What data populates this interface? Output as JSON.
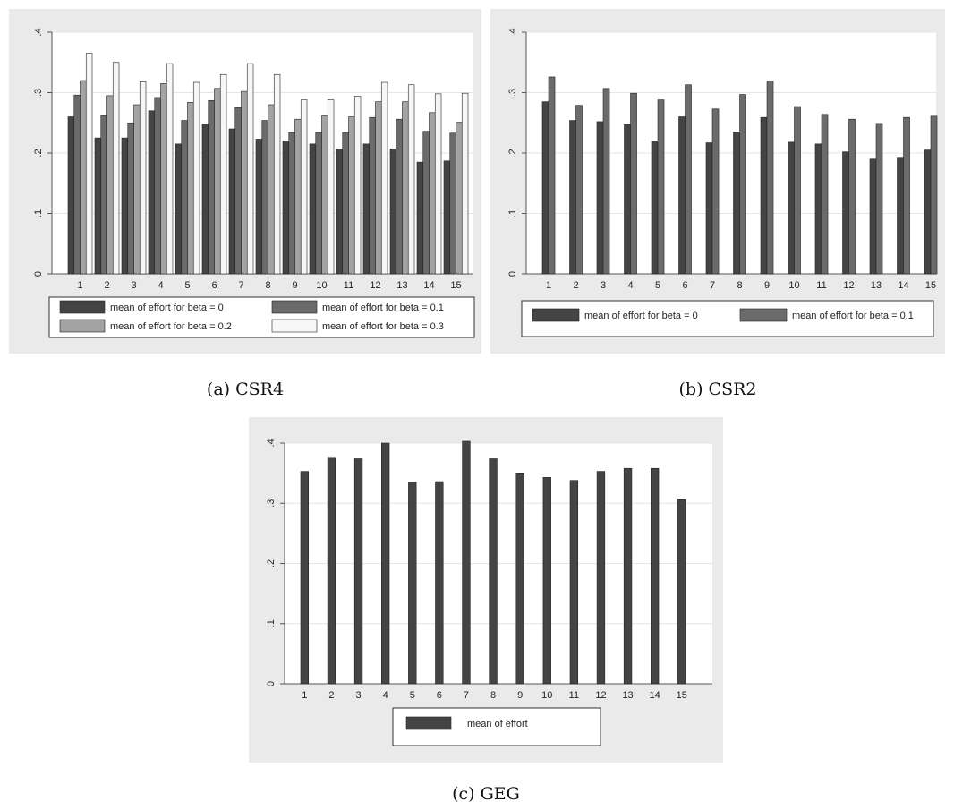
{
  "colors": {
    "panel_bg": "#eaeaea",
    "plot_bg": "#ffffff",
    "grid": "#e6e6e6",
    "axis": "#555555",
    "bar_stroke": "#222222",
    "series": [
      "#444444",
      "#6b6b6b",
      "#a3a3a3",
      "#f7f7f7"
    ]
  },
  "captions": {
    "a": "(a)  CSR4",
    "b": "(b)  CSR2",
    "c": "(c)  GEG"
  },
  "chart_data": [
    {
      "id": "a",
      "type": "bar",
      "ylim": [
        0,
        0.4
      ],
      "yticks": [
        0,
        0.1,
        0.2,
        0.3,
        0.4
      ],
      "ytick_labels": [
        "0",
        ".1",
        ".2",
        ".3",
        ".4"
      ],
      "grid": true,
      "legend": "bottom",
      "categories": [
        "1",
        "2",
        "3",
        "4",
        "5",
        "6",
        "7",
        "8",
        "9",
        "10",
        "11",
        "12",
        "13",
        "14",
        "15"
      ],
      "series": [
        {
          "name": "mean of effort for beta = 0",
          "values": [
            0.26,
            0.225,
            0.225,
            0.27,
            0.215,
            0.248,
            0.24,
            0.223,
            0.22,
            0.215,
            0.207,
            0.215,
            0.207,
            0.185,
            0.187
          ]
        },
        {
          "name": "mean of effort for beta = 0.1",
          "values": [
            0.296,
            0.262,
            0.25,
            0.292,
            0.254,
            0.287,
            0.275,
            0.254,
            0.234,
            0.234,
            0.234,
            0.259,
            0.256,
            0.236,
            0.233
          ]
        },
        {
          "name": "mean of effort for beta = 0.2",
          "values": [
            0.32,
            0.295,
            0.28,
            0.315,
            0.284,
            0.307,
            0.302,
            0.28,
            0.256,
            0.262,
            0.26,
            0.285,
            0.285,
            0.267,
            0.251
          ]
        },
        {
          "name": "mean of effort for beta = 0.3",
          "values": [
            0.365,
            0.35,
            0.318,
            0.348,
            0.317,
            0.33,
            0.348,
            0.33,
            0.288,
            0.288,
            0.294,
            0.317,
            0.313,
            0.298,
            0.299
          ]
        }
      ]
    },
    {
      "id": "b",
      "type": "bar",
      "ylim": [
        0,
        0.4
      ],
      "yticks": [
        0,
        0.1,
        0.2,
        0.3,
        0.4
      ],
      "ytick_labels": [
        "0",
        ".1",
        ".2",
        ".3",
        ".4"
      ],
      "grid": true,
      "legend": "bottom",
      "categories": [
        "1",
        "2",
        "3",
        "4",
        "5",
        "6",
        "7",
        "8",
        "9",
        "10",
        "11",
        "12",
        "13",
        "14",
        "15"
      ],
      "series": [
        {
          "name": "mean of effort for beta = 0",
          "values": [
            0.285,
            0.254,
            0.252,
            0.247,
            0.22,
            0.26,
            0.217,
            0.235,
            0.259,
            0.218,
            0.215,
            0.202,
            0.19,
            0.193,
            0.205
          ]
        },
        {
          "name": "mean of effort for beta = 0.1",
          "values": [
            0.326,
            0.279,
            0.307,
            0.299,
            0.288,
            0.313,
            0.273,
            0.297,
            0.319,
            0.277,
            0.264,
            0.256,
            0.249,
            0.259,
            0.261
          ]
        }
      ]
    },
    {
      "id": "c",
      "type": "bar",
      "ylim": [
        0,
        0.4
      ],
      "yticks": [
        0,
        0.1,
        0.2,
        0.3,
        0.4
      ],
      "ytick_labels": [
        "0",
        ".1",
        ".2",
        ".3",
        ".4"
      ],
      "grid": true,
      "legend": "bottom",
      "categories": [
        "1",
        "2",
        "3",
        "4",
        "5",
        "6",
        "7",
        "8",
        "9",
        "10",
        "11",
        "12",
        "13",
        "14",
        "15"
      ],
      "series": [
        {
          "name": "mean of effort",
          "values": [
            0.353,
            0.375,
            0.374,
            0.4,
            0.335,
            0.336,
            0.403,
            0.374,
            0.349,
            0.343,
            0.338,
            0.353,
            0.358,
            0.358,
            0.306
          ]
        }
      ]
    }
  ]
}
